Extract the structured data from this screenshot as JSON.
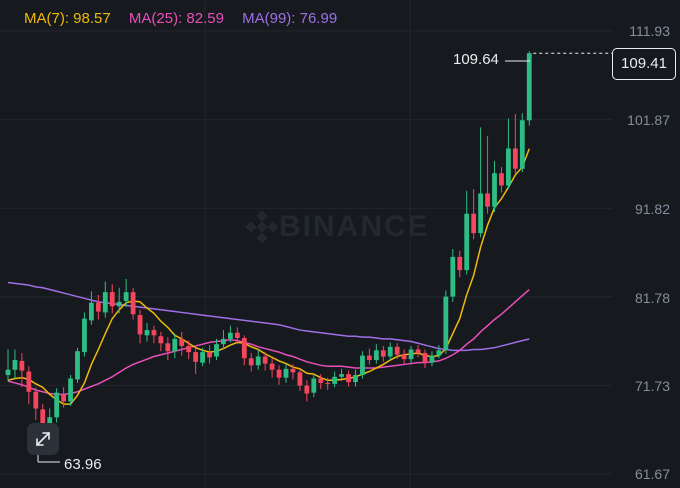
{
  "legend": {
    "ma7": "MA(7): 98.57",
    "ma25": "MA(25): 82.59",
    "ma99": "MA(99): 76.99"
  },
  "watermark": "BINANCE",
  "price_axis": [
    "111.93",
    "101.87",
    "91.82",
    "81.78",
    "71.73",
    "61.67"
  ],
  "current_price": "109.41",
  "high_marker": "109.64",
  "low_marker": "63.96",
  "colors": {
    "up": "#2ebd85",
    "down": "#f6465d",
    "ma7": "#f0b90b",
    "ma25": "#e84fbd",
    "ma99": "#9f6fe6"
  },
  "chart_data": {
    "type": "candlestick",
    "y_ticks": [
      111.93,
      101.87,
      91.82,
      81.78,
      71.73,
      61.67
    ],
    "ylim": [
      61.67,
      111.93
    ],
    "candles": [
      [
        72.9,
        73.5,
        75.8,
        72.2
      ],
      [
        73.5,
        74.6,
        75.8,
        72.5
      ],
      [
        74.5,
        73.4,
        75.4,
        71.5
      ],
      [
        73.3,
        71.0,
        73.9,
        69.6
      ],
      [
        71.0,
        69.1,
        71.5,
        67.8
      ],
      [
        69.0,
        66.9,
        69.6,
        63.96
      ],
      [
        66.9,
        68.1,
        69.1,
        66.0
      ],
      [
        68.1,
        70.9,
        71.4,
        67.5
      ],
      [
        70.7,
        69.9,
        71.5,
        69.2
      ],
      [
        69.9,
        72.5,
        72.9,
        69.4
      ],
      [
        72.4,
        75.6,
        76.0,
        72.0
      ],
      [
        75.5,
        79.3,
        80.0,
        75.0
      ],
      [
        79.1,
        81.1,
        82.4,
        78.6
      ],
      [
        81.1,
        80.1,
        82.0,
        79.2
      ],
      [
        80.0,
        82.3,
        83.5,
        79.4
      ],
      [
        82.3,
        80.7,
        83.2,
        79.9
      ],
      [
        80.7,
        81.2,
        82.8,
        79.9
      ],
      [
        81.3,
        82.3,
        83.8,
        80.6
      ],
      [
        82.3,
        79.8,
        82.8,
        79.2
      ],
      [
        79.7,
        77.5,
        80.3,
        76.5
      ],
      [
        77.4,
        78.0,
        78.8,
        76.7
      ],
      [
        78.0,
        77.4,
        78.5,
        76.5
      ],
      [
        77.3,
        76.5,
        77.8,
        75.6
      ],
      [
        76.5,
        75.6,
        77.2,
        74.6
      ],
      [
        75.6,
        77.0,
        77.6,
        74.8
      ],
      [
        77.0,
        76.2,
        77.8,
        75.1
      ],
      [
        76.2,
        75.5,
        76.8,
        74.7
      ],
      [
        75.5,
        74.4,
        76.0,
        73.0
      ],
      [
        74.3,
        75.5,
        76.0,
        73.9
      ],
      [
        75.5,
        74.9,
        76.3,
        74.2
      ],
      [
        75.0,
        76.4,
        77.0,
        74.6
      ],
      [
        76.4,
        77.0,
        78.0,
        75.8
      ],
      [
        77.0,
        77.7,
        78.5,
        76.6
      ],
      [
        77.7,
        77.1,
        78.3,
        76.4
      ],
      [
        77.1,
        74.8,
        77.4,
        74.0
      ],
      [
        74.8,
        74.0,
        75.4,
        73.3
      ],
      [
        74.0,
        75.0,
        75.8,
        73.5
      ],
      [
        75.0,
        74.2,
        75.5,
        73.4
      ],
      [
        74.2,
        73.5,
        74.8,
        72.6
      ],
      [
        73.5,
        72.6,
        74.0,
        71.8
      ],
      [
        72.6,
        73.6,
        74.2,
        72.0
      ],
      [
        73.6,
        73.2,
        74.1,
        72.4
      ],
      [
        73.2,
        71.7,
        73.6,
        71.1
      ],
      [
        71.7,
        70.8,
        72.3,
        69.9
      ],
      [
        70.9,
        72.5,
        73.1,
        70.4
      ],
      [
        72.5,
        72.0,
        73.0,
        71.3
      ],
      [
        72.0,
        71.9,
        72.6,
        71.2
      ],
      [
        71.9,
        72.7,
        73.3,
        71.5
      ],
      [
        72.7,
        73.0,
        73.6,
        72.2
      ],
      [
        73.0,
        72.1,
        73.4,
        71.6
      ],
      [
        72.1,
        72.9,
        73.5,
        71.6
      ],
      [
        72.9,
        75.1,
        75.6,
        72.5
      ],
      [
        75.1,
        74.6,
        75.9,
        74.1
      ],
      [
        74.6,
        75.7,
        76.4,
        74.2
      ],
      [
        75.7,
        75.0,
        76.2,
        74.4
      ],
      [
        75.0,
        76.1,
        76.6,
        74.6
      ],
      [
        76.1,
        75.2,
        76.5,
        74.7
      ],
      [
        75.2,
        74.7,
        75.8,
        74.2
      ],
      [
        74.7,
        75.8,
        76.2,
        74.3
      ],
      [
        75.8,
        75.4,
        76.3,
        74.9
      ],
      [
        75.4,
        74.3,
        75.8,
        73.7
      ],
      [
        74.3,
        75.1,
        75.6,
        73.9
      ],
      [
        75.1,
        75.7,
        76.3,
        74.8
      ],
      [
        75.7,
        81.8,
        82.5,
        75.3
      ],
      [
        81.8,
        86.3,
        87.2,
        81.2
      ],
      [
        86.3,
        84.8,
        87.0,
        84.0
      ],
      [
        84.8,
        91.2,
        93.8,
        84.3
      ],
      [
        91.2,
        89.0,
        94.0,
        88.3
      ],
      [
        89.0,
        93.5,
        101.0,
        88.5
      ],
      [
        93.5,
        92.0,
        100.0,
        91.2
      ],
      [
        92.0,
        95.8,
        97.2,
        91.4
      ],
      [
        95.8,
        94.4,
        96.5,
        93.6
      ],
      [
        94.4,
        98.6,
        102.0,
        94.0
      ],
      [
        98.6,
        96.3,
        102.5,
        95.8
      ],
      [
        96.3,
        101.8,
        102.6,
        95.9
      ],
      [
        101.8,
        109.41,
        109.64,
        101.2
      ]
    ],
    "ma7": [
      72.3,
      72.5,
      72.6,
      72.4,
      71.9,
      71.5,
      70.7,
      70.1,
      69.6,
      69.6,
      70.6,
      72.0,
      74.1,
      75.8,
      77.6,
      79.3,
      80.3,
      81.1,
      81.3,
      81.2,
      80.5,
      79.9,
      79.0,
      78.3,
      77.4,
      77.0,
      76.5,
      76.0,
      75.7,
      75.5,
      75.6,
      75.9,
      76.3,
      76.6,
      76.5,
      76.1,
      75.8,
      75.3,
      74.9,
      74.5,
      74.2,
      73.8,
      73.6,
      73.1,
      73.0,
      72.6,
      72.3,
      72.3,
      72.4,
      72.5,
      72.7,
      73.0,
      73.3,
      73.7,
      74.1,
      74.6,
      75.0,
      75.2,
      75.3,
      75.4,
      75.1,
      75.0,
      75.1,
      75.9,
      77.6,
      79.3,
      82.0,
      84.2,
      87.4,
      89.9,
      91.9,
      92.9,
      94.2,
      95.6,
      96.5,
      98.57
    ],
    "ma25": [
      72.2,
      72.0,
      71.8,
      71.5,
      71.2,
      71.0,
      70.8,
      70.7,
      70.7,
      70.8,
      71.0,
      71.3,
      71.6,
      71.9,
      72.3,
      72.7,
      73.2,
      73.7,
      74.1,
      74.4,
      74.7,
      75.0,
      75.2,
      75.4,
      75.6,
      75.8,
      76.0,
      76.2,
      76.4,
      76.6,
      76.7,
      76.8,
      76.9,
      76.8,
      76.6,
      76.4,
      76.1,
      75.9,
      75.7,
      75.5,
      75.2,
      75.0,
      74.7,
      74.4,
      74.2,
      74.0,
      73.9,
      73.9,
      73.9,
      73.8,
      73.7,
      73.7,
      73.7,
      73.7,
      73.8,
      73.9,
      74.0,
      74.1,
      74.2,
      74.3,
      74.3,
      74.4,
      74.5,
      74.8,
      75.2,
      75.7,
      76.4,
      77.0,
      77.8,
      78.5,
      79.2,
      79.8,
      80.5,
      81.2,
      81.9,
      82.59
    ],
    "ma99": [
      83.4,
      83.3,
      83.2,
      83.1,
      82.9,
      82.8,
      82.6,
      82.4,
      82.2,
      82.0,
      81.8,
      81.6,
      81.4,
      81.2,
      81.1,
      81.0,
      80.9,
      80.8,
      80.7,
      80.6,
      80.5,
      80.4,
      80.3,
      80.2,
      80.1,
      80.0,
      79.9,
      79.8,
      79.7,
      79.6,
      79.5,
      79.4,
      79.3,
      79.2,
      79.1,
      79.0,
      78.9,
      78.8,
      78.7,
      78.6,
      78.4,
      78.2,
      78.0,
      77.9,
      77.8,
      77.7,
      77.6,
      77.5,
      77.4,
      77.3,
      77.3,
      77.2,
      77.2,
      77.1,
      77.0,
      77.0,
      76.9,
      76.8,
      76.7,
      76.5,
      76.3,
      76.1,
      75.9,
      75.8,
      75.7,
      75.7,
      75.7,
      75.8,
      75.8,
      75.9,
      76.0,
      76.2,
      76.4,
      76.6,
      76.8,
      76.99
    ]
  }
}
